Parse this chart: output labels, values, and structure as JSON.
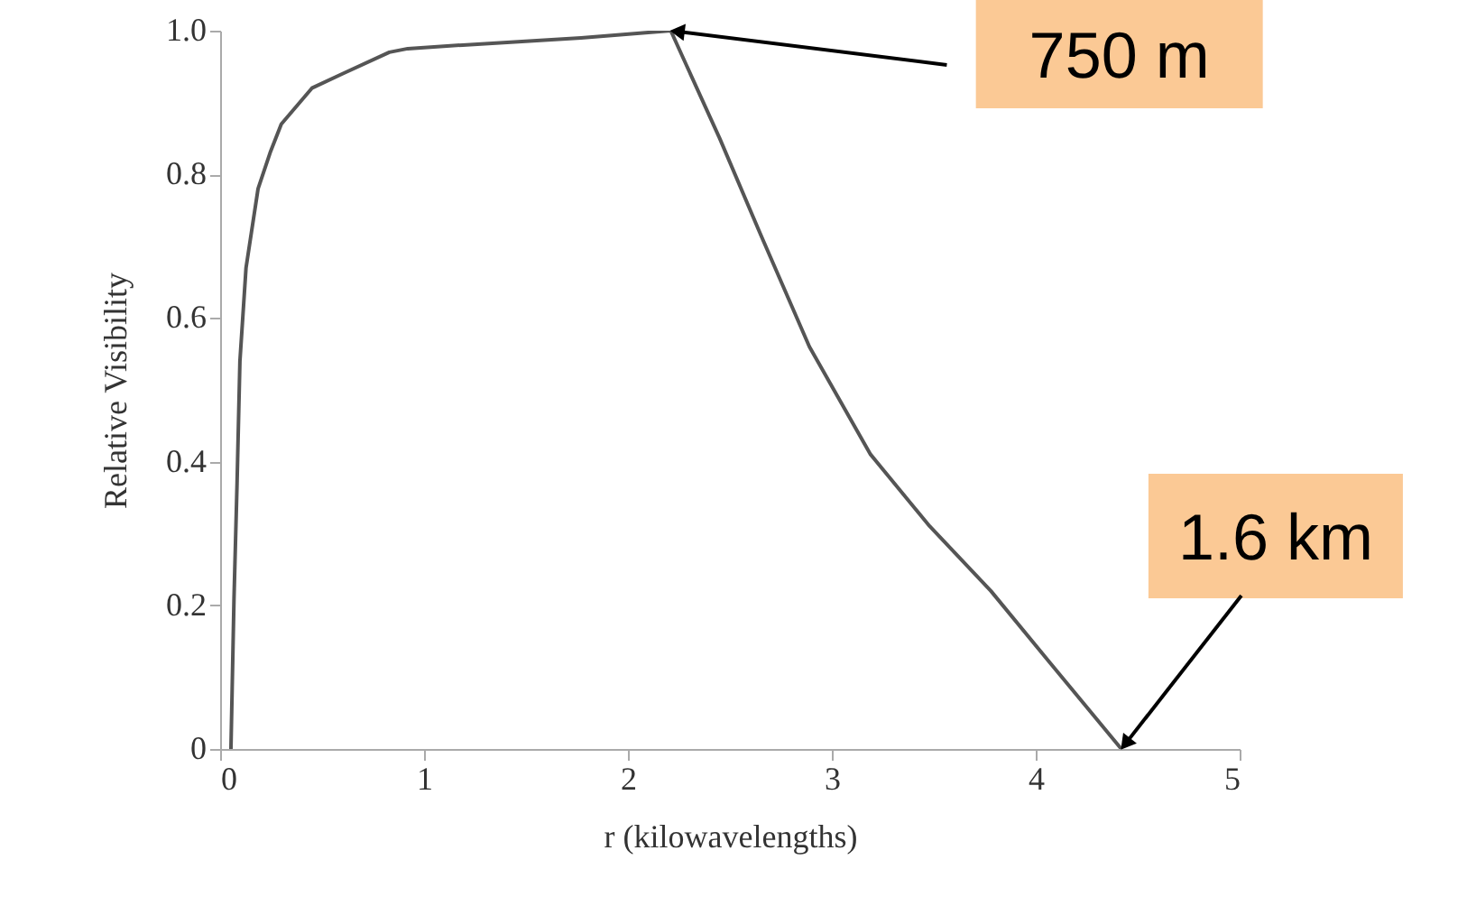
{
  "chart_data": {
    "type": "line",
    "xlabel": "r  (kilowavelengths)",
    "ylabel": "Relative Visibility",
    "series": [
      {
        "color": "#555555",
        "x": [
          0.053,
          0.068,
          0.083,
          0.097,
          0.127,
          0.186,
          0.245,
          0.3,
          0.45,
          0.6,
          0.83,
          0.92,
          1.19,
          1.77,
          2.21,
          2.45,
          2.66,
          2.89,
          3.19,
          3.48,
          3.78,
          4.07,
          4.42
        ],
        "values": [
          0,
          0.21,
          0.37,
          0.54,
          0.67,
          0.78,
          0.83,
          0.87,
          0.92,
          0.94,
          0.97,
          0.975,
          0.98,
          0.99,
          1.0,
          0.85,
          0.71,
          0.56,
          0.41,
          0.31,
          0.22,
          0.12,
          0
        ]
      }
    ],
    "xlim": [
      0,
      5
    ],
    "xticks": [
      0,
      1,
      2,
      3,
      4,
      5
    ],
    "ylim": [
      0,
      1
    ],
    "yticks": [
      0,
      0.2,
      0.4,
      0.6,
      0.8,
      {
        "value": 1,
        "label": "1.0"
      }
    ],
    "grid": false,
    "marker": "none",
    "line_style": "solid",
    "annotations": [
      {
        "text": "750 m",
        "x": 2.21,
        "y": 1.0
      },
      {
        "text": "1.6 km",
        "x": 4.42,
        "y": 0
      }
    ]
  }
}
